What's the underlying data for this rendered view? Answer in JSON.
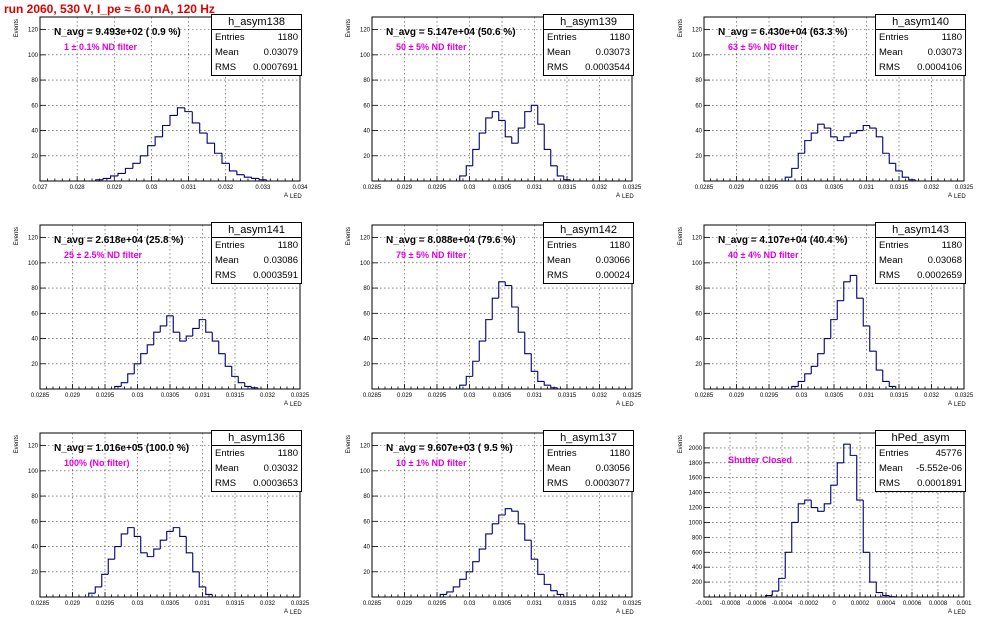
{
  "header": {
    "title": "run 2060,   530 V, I_pe ≈ 6.0 nA, 120 Hz"
  },
  "stat_labels": {
    "entries": "Entries",
    "mean": "Mean",
    "rms": "RMS"
  },
  "axis_text": {
    "ylabel": "Events",
    "xlabel": "A",
    "xsub": "LED"
  },
  "colors": {
    "histogram": "#00007a",
    "filter_label": "#e000e0",
    "title": "#e00000"
  },
  "panels": [
    {
      "name": "h_asym138",
      "navg": "N_avg = 9.493e+02 ( 0.9 %)",
      "filter": "1 ± 0.1% ND filter",
      "entries": "1180",
      "mean": "0.03079",
      "rms": "0.0007691",
      "xticks": [
        "0.027",
        "0.028",
        "0.029",
        "0.03",
        "0.031",
        "0.032",
        "0.033",
        "0.034"
      ],
      "yticks": [
        "20",
        "40",
        "60",
        "80",
        "100",
        "120"
      ]
    },
    {
      "name": "h_asym139",
      "navg": "N_avg = 5.147e+04 (50.6 %)",
      "filter": "50 ± 5% ND filter",
      "entries": "1180",
      "mean": "0.03073",
      "rms": "0.0003544",
      "xticks": [
        "0.0285",
        "0.029",
        "0.0295",
        "0.03",
        "0.0305",
        "0.031",
        "0.0315",
        "0.032",
        "0.0325"
      ],
      "yticks": [
        "20",
        "40",
        "60",
        "80",
        "100",
        "120"
      ]
    },
    {
      "name": "h_asym140",
      "navg": "N_avg = 6.430e+04 (63.3 %)",
      "filter": "63 ± 5% ND filter",
      "entries": "1180",
      "mean": "0.03073",
      "rms": "0.0004106",
      "xticks": [
        "0.0285",
        "0.029",
        "0.0295",
        "0.03",
        "0.0305",
        "0.031",
        "0.0315",
        "0.032",
        "0.0325"
      ],
      "yticks": [
        "20",
        "40",
        "60",
        "80",
        "100",
        "120"
      ]
    },
    {
      "name": "h_asym141",
      "navg": "N_avg = 2.618e+04 (25.8 %)",
      "filter": "25 ± 2.5% ND filter",
      "entries": "1180",
      "mean": "0.03086",
      "rms": "0.0003591",
      "xticks": [
        "0.0285",
        "0.029",
        "0.0295",
        "0.03",
        "0.0305",
        "0.031",
        "0.0315",
        "0.032",
        "0.0325"
      ],
      "yticks": [
        "20",
        "40",
        "60",
        "80",
        "100",
        "120"
      ]
    },
    {
      "name": "h_asym142",
      "navg": "N_avg = 8.088e+04 (79.6 %)",
      "filter": "79 ± 5% ND filter",
      "entries": "1180",
      "mean": "0.03066",
      "rms": "0.00024",
      "xticks": [
        "0.0285",
        "0.029",
        "0.0295",
        "0.03",
        "0.0305",
        "0.031",
        "0.0315",
        "0.032",
        "0.0325"
      ],
      "yticks": [
        "20",
        "40",
        "60",
        "80",
        "100",
        "120"
      ]
    },
    {
      "name": "h_asym143",
      "navg": "N_avg = 4.107e+04 (40.4 %)",
      "filter": "40 ± 4% ND filter",
      "entries": "1180",
      "mean": "0.03068",
      "rms": "0.0002659",
      "xticks": [
        "0.0285",
        "0.029",
        "0.0295",
        "0.03",
        "0.0305",
        "0.031",
        "0.0315",
        "0.032",
        "0.0325"
      ],
      "yticks": [
        "20",
        "40",
        "60",
        "80",
        "100",
        "120"
      ]
    },
    {
      "name": "h_asym136",
      "navg": "N_avg = 1.016e+05 (100.0 %)",
      "filter": "100% (No filter)",
      "entries": "1180",
      "mean": "0.03032",
      "rms": "0.0003653",
      "xticks": [
        "0.0285",
        "0.029",
        "0.0295",
        "0.03",
        "0.0305",
        "0.031",
        "0.0315",
        "0.032",
        "0.0325"
      ],
      "yticks": [
        "20",
        "40",
        "60",
        "80",
        "100",
        "120"
      ]
    },
    {
      "name": "h_asym137",
      "navg": "N_avg = 9.607e+03 ( 9.5 %)",
      "filter": "10 ± 1% ND filter",
      "entries": "1180",
      "mean": "0.03056",
      "rms": "0.0003077",
      "xticks": [
        "0.0285",
        "0.029",
        "0.0295",
        "0.03",
        "0.0305",
        "0.031",
        "0.0315",
        "0.032",
        "0.0325"
      ],
      "yticks": [
        "20",
        "40",
        "60",
        "80",
        "100",
        "120"
      ]
    },
    {
      "name": "hPed_asym",
      "navg": "",
      "filter": "Shutter Closed",
      "entries": "45776",
      "mean": "-5.552e-06",
      "rms": "0.0001891",
      "xticks": [
        "-0.001",
        "-0.0008",
        "-0.0006",
        "-0.0004",
        "-0.0002",
        "0",
        "0.0002",
        "0.0004",
        "0.0006",
        "0.0008",
        "0.001"
      ],
      "yticks": [
        "200",
        "400",
        "600",
        "800",
        "1000",
        "1200",
        "1400",
        "1600",
        "1800",
        "2000"
      ]
    }
  ],
  "chart_data": [
    {
      "type": "bar",
      "title": "h_asym138",
      "xlim": [
        0.027,
        0.034
      ],
      "ylim": [
        0,
        130
      ],
      "ylabel": "Events",
      "xlabel": "A LED",
      "x": [
        0.0286,
        0.0288,
        0.029,
        0.0292,
        0.0294,
        0.0296,
        0.0298,
        0.03,
        0.0302,
        0.0304,
        0.0306,
        0.0308,
        0.031,
        0.0312,
        0.0314,
        0.0316,
        0.0318,
        0.032,
        0.0322,
        0.0324,
        0.0326,
        0.0328,
        0.033
      ],
      "values": [
        1,
        2,
        4,
        6,
        10,
        14,
        20,
        28,
        35,
        44,
        52,
        58,
        55,
        46,
        38,
        30,
        22,
        14,
        8,
        5,
        3,
        2,
        1
      ]
    },
    {
      "type": "bar",
      "title": "h_asym139",
      "xlim": [
        0.0285,
        0.0325
      ],
      "ylim": [
        0,
        130
      ],
      "ylabel": "Events",
      "xlabel": "A LED",
      "x": [
        0.0299,
        0.03,
        0.0301,
        0.0302,
        0.0303,
        0.0304,
        0.0305,
        0.0306,
        0.0307,
        0.0308,
        0.0309,
        0.031,
        0.0311,
        0.0312,
        0.0313,
        0.0314,
        0.0315
      ],
      "values": [
        4,
        12,
        25,
        38,
        50,
        55,
        48,
        35,
        30,
        42,
        55,
        60,
        45,
        25,
        12,
        4,
        1
      ]
    },
    {
      "type": "bar",
      "title": "h_asym140",
      "xlim": [
        0.0285,
        0.0325
      ],
      "ylim": [
        0,
        130
      ],
      "ylabel": "Events",
      "xlabel": "A LED",
      "x": [
        0.0298,
        0.0299,
        0.03,
        0.0301,
        0.0302,
        0.0303,
        0.0304,
        0.0305,
        0.0306,
        0.0307,
        0.0308,
        0.0309,
        0.031,
        0.0311,
        0.0312,
        0.0313,
        0.0314,
        0.0315,
        0.0316,
        0.0317
      ],
      "values": [
        3,
        10,
        22,
        32,
        38,
        45,
        42,
        35,
        32,
        35,
        38,
        40,
        44,
        42,
        35,
        22,
        14,
        8,
        3,
        1
      ]
    },
    {
      "type": "bar",
      "title": "h_asym141",
      "xlim": [
        0.0285,
        0.0325
      ],
      "ylim": [
        0,
        130
      ],
      "ylabel": "Events",
      "xlabel": "A LED",
      "x": [
        0.0297,
        0.0298,
        0.0299,
        0.03,
        0.0301,
        0.0302,
        0.0303,
        0.0304,
        0.0305,
        0.0306,
        0.0307,
        0.0308,
        0.0309,
        0.031,
        0.0311,
        0.0312,
        0.0313,
        0.0314,
        0.0315,
        0.0316,
        0.0317,
        0.0318
      ],
      "values": [
        2,
        5,
        12,
        20,
        28,
        35,
        45,
        50,
        58,
        45,
        38,
        42,
        48,
        55,
        45,
        38,
        28,
        18,
        10,
        5,
        2,
        1
      ]
    },
    {
      "type": "bar",
      "title": "h_asym142",
      "xlim": [
        0.0285,
        0.0325
      ],
      "ylim": [
        0,
        130
      ],
      "ylabel": "Events",
      "xlabel": "A LED",
      "x": [
        0.0299,
        0.03,
        0.0301,
        0.0302,
        0.0303,
        0.0304,
        0.0305,
        0.0306,
        0.0307,
        0.0308,
        0.0309,
        0.031,
        0.0311,
        0.0312,
        0.0313
      ],
      "values": [
        3,
        10,
        22,
        38,
        55,
        72,
        85,
        82,
        65,
        45,
        28,
        14,
        6,
        3,
        1
      ]
    },
    {
      "type": "bar",
      "title": "h_asym143",
      "xlim": [
        0.0285,
        0.0325
      ],
      "ylim": [
        0,
        130
      ],
      "ylabel": "Events",
      "xlabel": "A LED",
      "x": [
        0.0299,
        0.03,
        0.0301,
        0.0302,
        0.0303,
        0.0304,
        0.0305,
        0.0306,
        0.0307,
        0.0308,
        0.0309,
        0.031,
        0.0311,
        0.0312,
        0.0313,
        0.0314
      ],
      "values": [
        2,
        6,
        12,
        18,
        28,
        40,
        55,
        70,
        85,
        90,
        72,
        50,
        30,
        15,
        6,
        2
      ]
    },
    {
      "type": "bar",
      "title": "h_asym136",
      "xlim": [
        0.0285,
        0.0325
      ],
      "ylim": [
        0,
        130
      ],
      "ylabel": "Events",
      "xlabel": "A LED",
      "x": [
        0.0293,
        0.0294,
        0.0295,
        0.0296,
        0.0297,
        0.0298,
        0.0299,
        0.03,
        0.0301,
        0.0302,
        0.0303,
        0.0304,
        0.0305,
        0.0306,
        0.0307,
        0.0308,
        0.0309,
        0.031,
        0.0311
      ],
      "values": [
        3,
        8,
        18,
        30,
        40,
        50,
        55,
        48,
        35,
        32,
        38,
        45,
        52,
        55,
        48,
        35,
        20,
        8,
        2
      ]
    },
    {
      "type": "bar",
      "title": "h_asym137",
      "xlim": [
        0.0285,
        0.0325
      ],
      "ylim": [
        0,
        130
      ],
      "ylabel": "Events",
      "xlabel": "A LED",
      "x": [
        0.0296,
        0.0297,
        0.0298,
        0.0299,
        0.03,
        0.0301,
        0.0302,
        0.0303,
        0.0304,
        0.0305,
        0.0306,
        0.0307,
        0.0308,
        0.0309,
        0.031,
        0.0311,
        0.0312,
        0.0313,
        0.0314
      ],
      "values": [
        2,
        4,
        8,
        14,
        20,
        28,
        38,
        50,
        58,
        65,
        70,
        68,
        58,
        45,
        30,
        18,
        10,
        5,
        2
      ]
    },
    {
      "type": "bar",
      "title": "hPed_asym",
      "xlim": [
        -0.001,
        0.001
      ],
      "ylim": [
        0,
        2200
      ],
      "ylabel": "Events",
      "xlabel": "A LED",
      "x": [
        -0.0005,
        -0.00045,
        -0.0004,
        -0.00035,
        -0.0003,
        -0.00025,
        -0.0002,
        -0.00015,
        -0.0001,
        -5e-05,
        0,
        5e-05,
        0.0001,
        0.00015,
        0.0002,
        0.00025,
        0.0003,
        0.00035,
        0.0004,
        0.00045
      ],
      "values": [
        20,
        80,
        250,
        600,
        1000,
        1250,
        1300,
        1200,
        1150,
        1250,
        1500,
        1800,
        2050,
        1900,
        1300,
        600,
        200,
        60,
        20,
        5
      ]
    }
  ]
}
